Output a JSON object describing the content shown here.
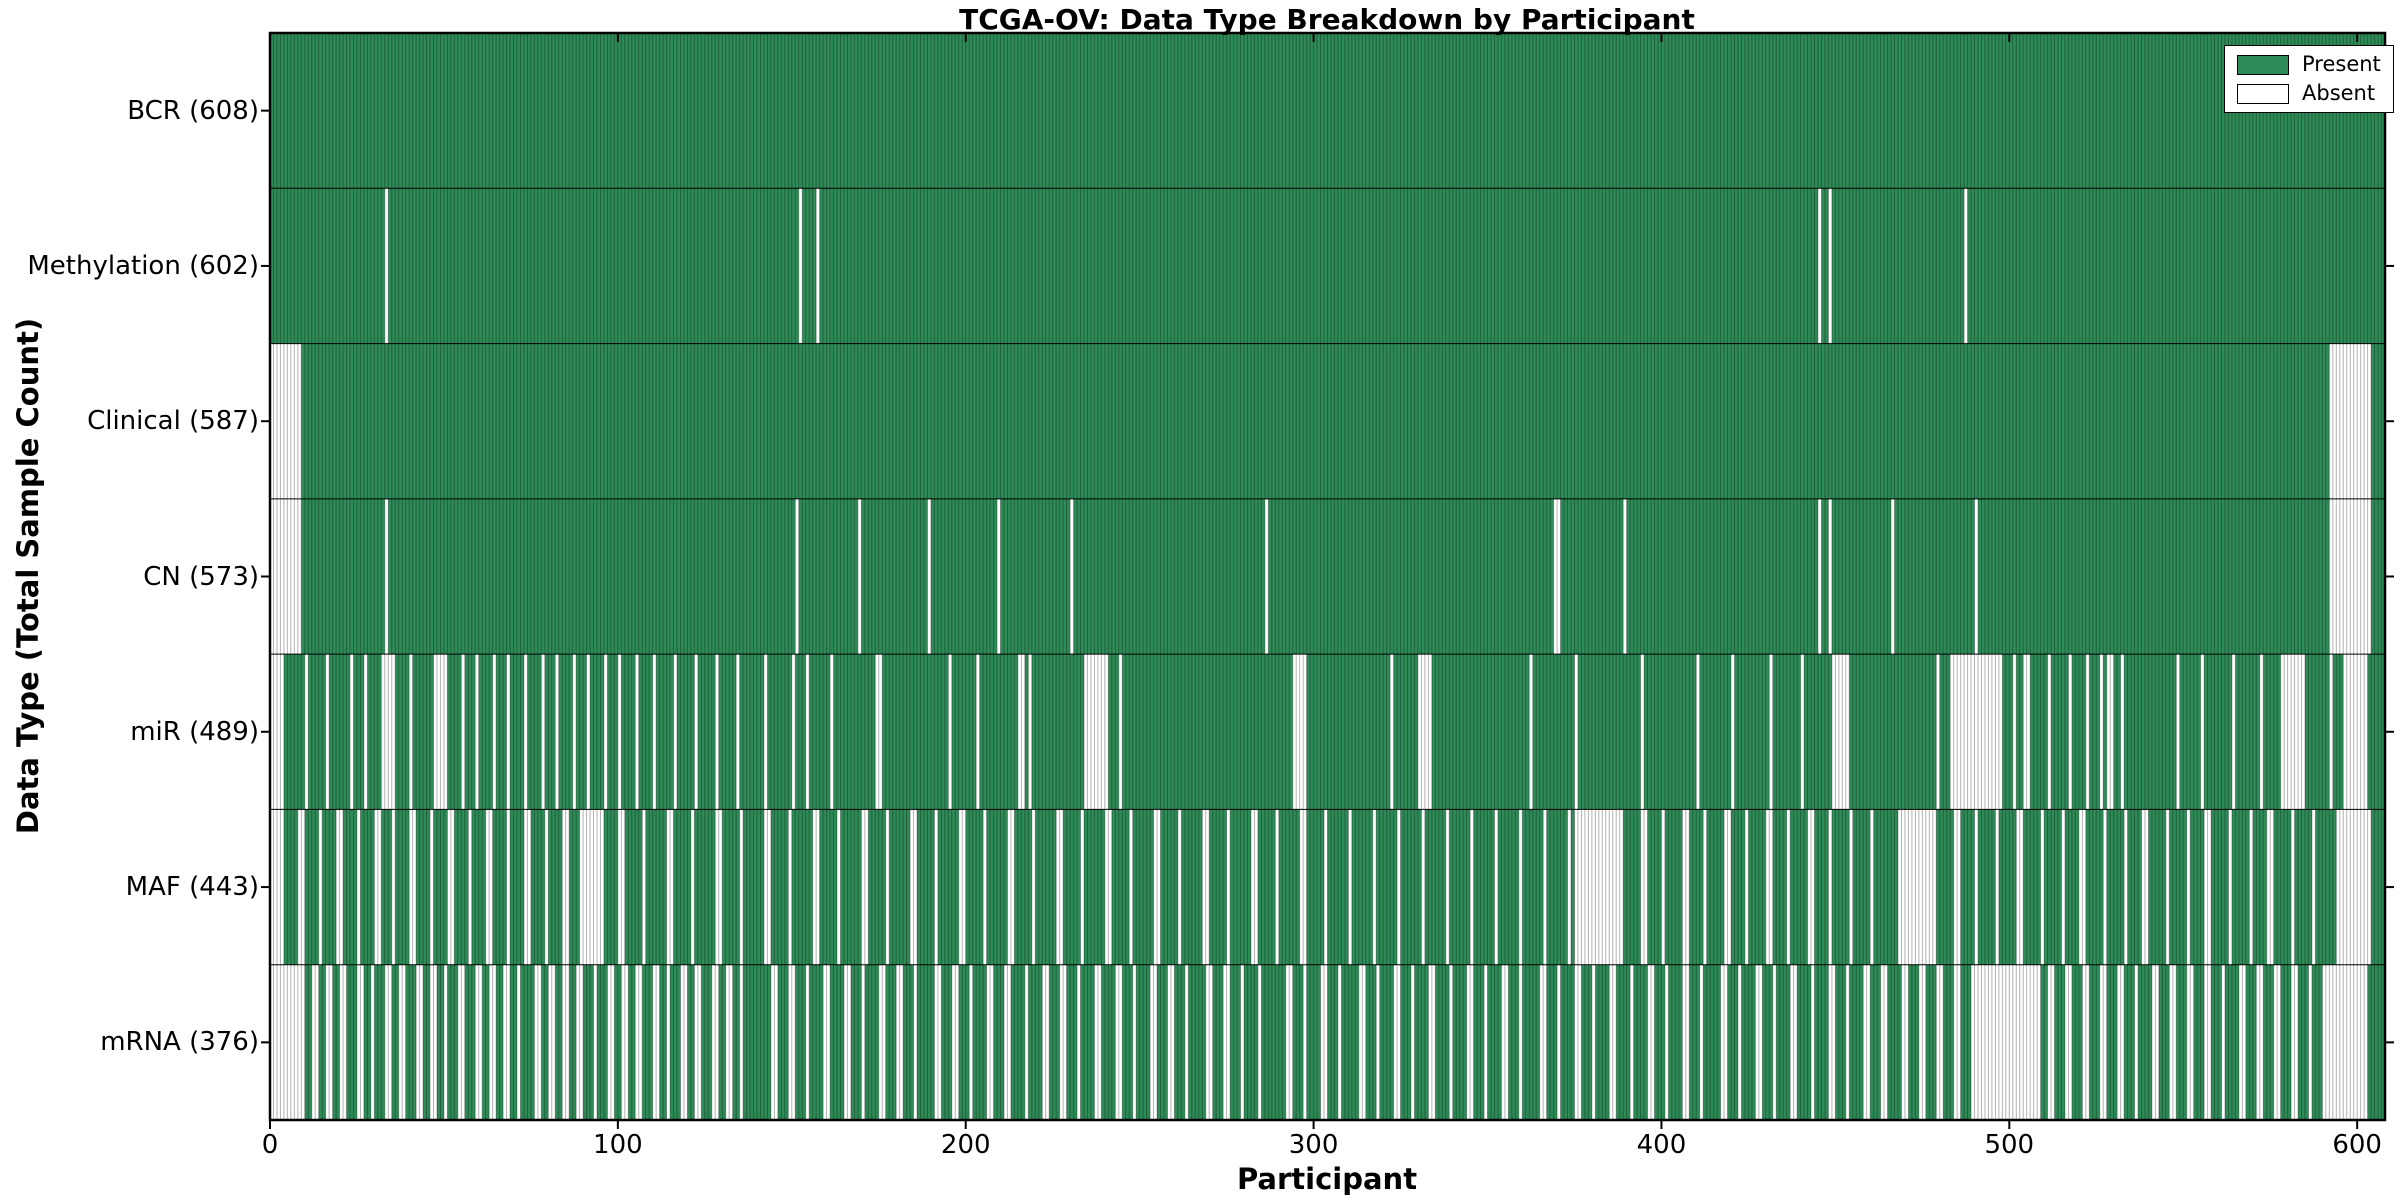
{
  "title": "TCGA-OV: Data Type Breakdown by Participant",
  "axes": {
    "x_label": "Participant",
    "y_label": "Data Type (Total Sample Count)",
    "x_ticks": [
      0,
      100,
      200,
      300,
      400,
      500,
      600
    ]
  },
  "legend": {
    "items": [
      {
        "label": "Present",
        "color_key": "present"
      },
      {
        "label": "Absent",
        "color_key": "absent"
      }
    ]
  },
  "colors": {
    "present": "#2e8b57",
    "absent": "#ffffff",
    "bar_edge": "rgba(0,0,0,0.30)",
    "axis": "#000000"
  },
  "chart_data": {
    "type": "heatmap",
    "n_participants": 608,
    "x_range": [
      0,
      608
    ],
    "cell_states": [
      "present",
      "absent"
    ],
    "rows": [
      {
        "label": "BCR (608)",
        "data_type": "BCR",
        "present_count": 608,
        "absent_ranges": []
      },
      {
        "label": "Methylation (602)",
        "data_type": "Methylation",
        "present_count": 602,
        "absent_ranges": [
          [
            33,
            33
          ],
          [
            152,
            152
          ],
          [
            157,
            157
          ],
          [
            445,
            445
          ],
          [
            448,
            448
          ],
          [
            487,
            487
          ]
        ]
      },
      {
        "label": "Clinical (587)",
        "data_type": "Clinical",
        "present_count": 587,
        "absent_ranges": [
          [
            0,
            8
          ],
          [
            592,
            603
          ]
        ]
      },
      {
        "label": "CN (573)",
        "data_type": "CN",
        "present_count": 573,
        "absent_ranges": [
          [
            0,
            8
          ],
          [
            33,
            33
          ],
          [
            151,
            151
          ],
          [
            169,
            169
          ],
          [
            189,
            189
          ],
          [
            209,
            209
          ],
          [
            230,
            230
          ],
          [
            286,
            286
          ],
          [
            369,
            370
          ],
          [
            389,
            389
          ],
          [
            445,
            445
          ],
          [
            448,
            448
          ],
          [
            466,
            466
          ],
          [
            490,
            490
          ],
          [
            592,
            603
          ]
        ]
      },
      {
        "label": "miR (489)",
        "data_type": "miR",
        "present_count": 489,
        "absent_ranges": [
          [
            0,
            3
          ],
          [
            10,
            10
          ],
          [
            16,
            16
          ],
          [
            23,
            23
          ],
          [
            27,
            27
          ],
          [
            32,
            35
          ],
          [
            40,
            40
          ],
          [
            47,
            50
          ],
          [
            55,
            55
          ],
          [
            59,
            59
          ],
          [
            64,
            64
          ],
          [
            68,
            68
          ],
          [
            73,
            73
          ],
          [
            78,
            78
          ],
          [
            82,
            82
          ],
          [
            87,
            87
          ],
          [
            91,
            91
          ],
          [
            96,
            96
          ],
          [
            100,
            100
          ],
          [
            105,
            105
          ],
          [
            110,
            110
          ],
          [
            116,
            116
          ],
          [
            122,
            122
          ],
          [
            128,
            128
          ],
          [
            134,
            134
          ],
          [
            142,
            142
          ],
          [
            150,
            150
          ],
          [
            154,
            154
          ],
          [
            161,
            161
          ],
          [
            174,
            175
          ],
          [
            195,
            195
          ],
          [
            203,
            203
          ],
          [
            215,
            216
          ],
          [
            218,
            218
          ],
          [
            234,
            240
          ],
          [
            244,
            244
          ],
          [
            294,
            297
          ],
          [
            322,
            322
          ],
          [
            330,
            333
          ],
          [
            362,
            362
          ],
          [
            375,
            375
          ],
          [
            394,
            394
          ],
          [
            410,
            410
          ],
          [
            420,
            420
          ],
          [
            431,
            431
          ],
          [
            440,
            440
          ],
          [
            449,
            453
          ],
          [
            479,
            479
          ],
          [
            483,
            497
          ],
          [
            501,
            501
          ],
          [
            504,
            505
          ],
          [
            511,
            511
          ],
          [
            517,
            517
          ],
          [
            522,
            522
          ],
          [
            526,
            526
          ],
          [
            528,
            529
          ],
          [
            532,
            532
          ],
          [
            548,
            548
          ],
          [
            555,
            555
          ],
          [
            564,
            564
          ],
          [
            572,
            572
          ],
          [
            578,
            584
          ],
          [
            592,
            592
          ],
          [
            596,
            602
          ]
        ]
      },
      {
        "label": "MAF (443)",
        "data_type": "MAF",
        "present_count": 443,
        "absent_ranges": [
          [
            0,
            3
          ],
          [
            8,
            9
          ],
          [
            14,
            14
          ],
          [
            19,
            20
          ],
          [
            25,
            25
          ],
          [
            30,
            31
          ],
          [
            35,
            35
          ],
          [
            40,
            41
          ],
          [
            46,
            46
          ],
          [
            51,
            52
          ],
          [
            57,
            57
          ],
          [
            62,
            63
          ],
          [
            68,
            68
          ],
          [
            73,
            74
          ],
          [
            79,
            79
          ],
          [
            84,
            85
          ],
          [
            89,
            95
          ],
          [
            100,
            101
          ],
          [
            107,
            107
          ],
          [
            114,
            115
          ],
          [
            121,
            121
          ],
          [
            128,
            129
          ],
          [
            135,
            135
          ],
          [
            142,
            143
          ],
          [
            149,
            149
          ],
          [
            156,
            157
          ],
          [
            163,
            163
          ],
          [
            170,
            171
          ],
          [
            177,
            177
          ],
          [
            184,
            185
          ],
          [
            191,
            191
          ],
          [
            198,
            199
          ],
          [
            205,
            205
          ],
          [
            212,
            213
          ],
          [
            219,
            219
          ],
          [
            226,
            227
          ],
          [
            233,
            233
          ],
          [
            240,
            241
          ],
          [
            247,
            247
          ],
          [
            254,
            255
          ],
          [
            261,
            261
          ],
          [
            268,
            269
          ],
          [
            275,
            275
          ],
          [
            282,
            283
          ],
          [
            289,
            289
          ],
          [
            296,
            297
          ],
          [
            303,
            303
          ],
          [
            310,
            310
          ],
          [
            317,
            317
          ],
          [
            324,
            324
          ],
          [
            331,
            331
          ],
          [
            338,
            338
          ],
          [
            345,
            345
          ],
          [
            352,
            352
          ],
          [
            359,
            359
          ],
          [
            366,
            366
          ],
          [
            373,
            373
          ],
          [
            375,
            388
          ],
          [
            394,
            395
          ],
          [
            400,
            400
          ],
          [
            406,
            407
          ],
          [
            412,
            412
          ],
          [
            418,
            419
          ],
          [
            424,
            424
          ],
          [
            430,
            431
          ],
          [
            436,
            436
          ],
          [
            442,
            443
          ],
          [
            448,
            448
          ],
          [
            454,
            454
          ],
          [
            460,
            460
          ],
          [
            468,
            478
          ],
          [
            484,
            485
          ],
          [
            490,
            490
          ],
          [
            496,
            496
          ],
          [
            502,
            503
          ],
          [
            509,
            509
          ],
          [
            515,
            515
          ],
          [
            520,
            521
          ],
          [
            527,
            527
          ],
          [
            533,
            533
          ],
          [
            538,
            539
          ],
          [
            545,
            545
          ],
          [
            551,
            551
          ],
          [
            556,
            557
          ],
          [
            563,
            563
          ],
          [
            569,
            569
          ],
          [
            574,
            575
          ],
          [
            581,
            581
          ],
          [
            587,
            587
          ],
          [
            594,
            603
          ]
        ]
      },
      {
        "label": "mRNA (376)",
        "data_type": "mRNA",
        "present_count": 376,
        "absent_ranges": [
          [
            0,
            9
          ],
          [
            12,
            13
          ],
          [
            16,
            17
          ],
          [
            20,
            21
          ],
          [
            25,
            26
          ],
          [
            29,
            29
          ],
          [
            33,
            34
          ],
          [
            37,
            38
          ],
          [
            42,
            43
          ],
          [
            46,
            47
          ],
          [
            50,
            50
          ],
          [
            54,
            55
          ],
          [
            59,
            60
          ],
          [
            63,
            64
          ],
          [
            67,
            68
          ],
          [
            71,
            71
          ],
          [
            76,
            77
          ],
          [
            80,
            81
          ],
          [
            84,
            85
          ],
          [
            88,
            89
          ],
          [
            93,
            93
          ],
          [
            97,
            98
          ],
          [
            101,
            102
          ],
          [
            105,
            106
          ],
          [
            110,
            111
          ],
          [
            114,
            114
          ],
          [
            118,
            119
          ],
          [
            122,
            123
          ],
          [
            127,
            128
          ],
          [
            131,
            132
          ],
          [
            135,
            135
          ],
          [
            144,
            145
          ],
          [
            149,
            150
          ],
          [
            154,
            154
          ],
          [
            159,
            160
          ],
          [
            165,
            166
          ],
          [
            170,
            170
          ],
          [
            175,
            176
          ],
          [
            180,
            181
          ],
          [
            185,
            185
          ],
          [
            191,
            192
          ],
          [
            196,
            197
          ],
          [
            201,
            201
          ],
          [
            206,
            207
          ],
          [
            211,
            212
          ],
          [
            217,
            217
          ],
          [
            222,
            223
          ],
          [
            227,
            228
          ],
          [
            232,
            232
          ],
          [
            237,
            238
          ],
          [
            243,
            244
          ],
          [
            248,
            248
          ],
          [
            253,
            254
          ],
          [
            258,
            259
          ],
          [
            263,
            263
          ],
          [
            269,
            270
          ],
          [
            274,
            275
          ],
          [
            279,
            279
          ],
          [
            284,
            284
          ],
          [
            292,
            293
          ],
          [
            297,
            297
          ],
          [
            302,
            303
          ],
          [
            307,
            307
          ],
          [
            313,
            314
          ],
          [
            318,
            318
          ],
          [
            323,
            324
          ],
          [
            328,
            328
          ],
          [
            333,
            334
          ],
          [
            339,
            339
          ],
          [
            344,
            345
          ],
          [
            349,
            349
          ],
          [
            354,
            355
          ],
          [
            359,
            359
          ],
          [
            365,
            366
          ],
          [
            370,
            370
          ],
          [
            375,
            376
          ],
          [
            380,
            380
          ],
          [
            385,
            386
          ],
          [
            391,
            391
          ],
          [
            396,
            397
          ],
          [
            401,
            401
          ],
          [
            406,
            407
          ],
          [
            411,
            411
          ],
          [
            417,
            418
          ],
          [
            422,
            422
          ],
          [
            427,
            428
          ],
          [
            432,
            432
          ],
          [
            437,
            438
          ],
          [
            443,
            443
          ],
          [
            448,
            449
          ],
          [
            453,
            453
          ],
          [
            458,
            459
          ],
          [
            463,
            464
          ],
          [
            469,
            470
          ],
          [
            474,
            475
          ],
          [
            479,
            480
          ],
          [
            484,
            485
          ],
          [
            489,
            508
          ],
          [
            511,
            512
          ],
          [
            516,
            517
          ],
          [
            521,
            522
          ],
          [
            526,
            527
          ],
          [
            531,
            532
          ],
          [
            536,
            536
          ],
          [
            541,
            542
          ],
          [
            546,
            547
          ],
          [
            551,
            552
          ],
          [
            556,
            557
          ],
          [
            561,
            561
          ],
          [
            566,
            567
          ],
          [
            571,
            572
          ],
          [
            576,
            577
          ],
          [
            581,
            582
          ],
          [
            586,
            586
          ],
          [
            590,
            602
          ]
        ]
      }
    ]
  }
}
